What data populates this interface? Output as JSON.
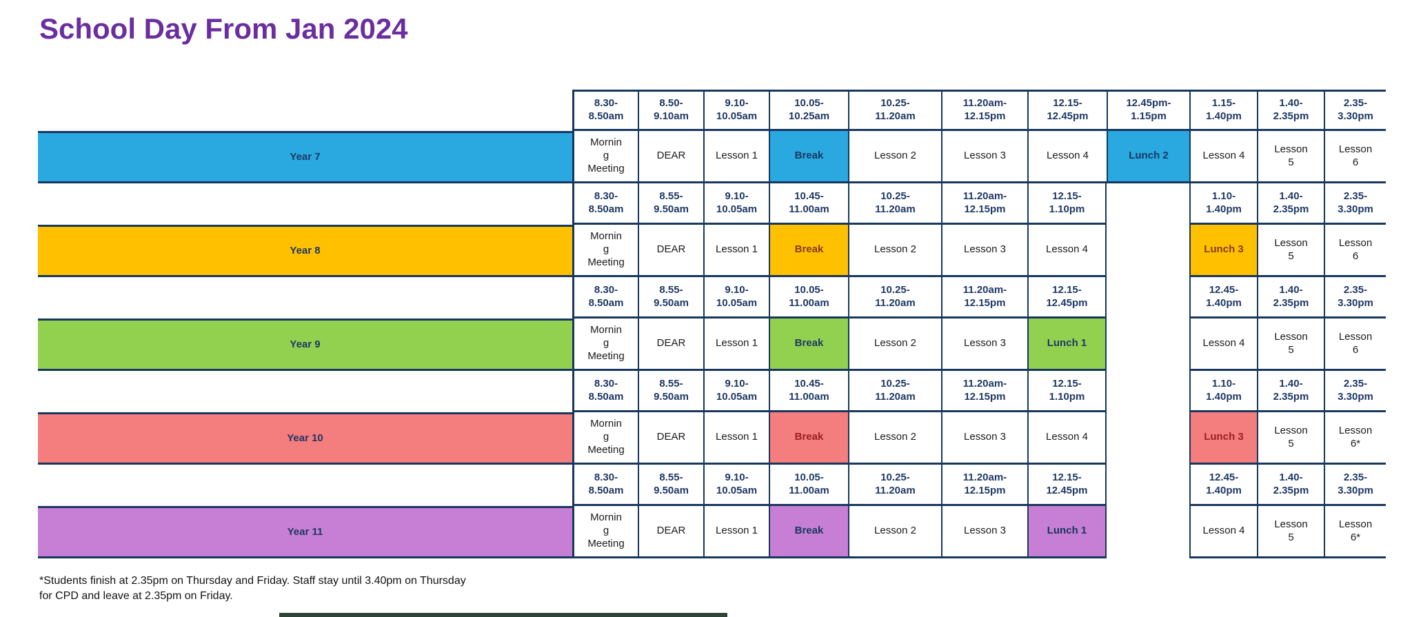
{
  "title": "School Day From Jan 2024",
  "footnote": "*Students finish at 2.35pm on Thursday and Friday. Staff stay until 3.40pm on Thursday\nfor CPD and leave at 2.35pm on Friday.",
  "colors": {
    "title_text": "#6B2E9E",
    "grid_border": "#17375E",
    "time_text": "#1F3864",
    "cell_text": "#1A1A1A",
    "bottom_bar": "#2D4436"
  },
  "timetable": {
    "years": [
      {
        "label": "Year 7",
        "color": "#29A9E0",
        "highlight_text_color": "#17375E",
        "times": [
          "8.30-\n8.50am",
          "8.50-\n9.10am",
          "9.10-\n10.05am",
          "10.05-\n10.25am",
          "10.25-\n11.20am",
          "11.20am-\n12.15pm",
          "12.15-\n12.45pm",
          "12.45pm-\n1.15pm",
          "1.15-\n1.40pm",
          "1.40-\n2.35pm",
          "2.35-\n3.30pm"
        ],
        "periods": [
          {
            "text": "Mornin\ng\nMeeting"
          },
          {
            "text": "DEAR"
          },
          {
            "text": "Lesson 1"
          },
          {
            "text": "Break",
            "highlight": true
          },
          {
            "text": "Lesson 2"
          },
          {
            "text": "Lesson 3"
          },
          {
            "text": "Lesson 4"
          },
          {
            "text": "Lunch 2",
            "highlight": true
          },
          {
            "text": "Lesson 4"
          },
          {
            "text": "Lesson\n5"
          },
          {
            "text": "Lesson\n6"
          }
        ]
      },
      {
        "label": "Year 8",
        "color": "#FFC000",
        "highlight_text_color": "#843C0C",
        "times": [
          "8.30-\n8.50am",
          "8.55-\n9.50am",
          "9.10-\n10.05am",
          "10.45-\n11.00am",
          "10.25-\n11.20am",
          "11.20am-\n12.15pm",
          "12.15-\n1.10pm",
          "",
          "1.10-\n1.40pm",
          "1.40-\n2.35pm",
          "2.35-\n3.30pm"
        ],
        "periods": [
          {
            "text": "Mornin\ng\nMeeting"
          },
          {
            "text": "DEAR"
          },
          {
            "text": "Lesson 1"
          },
          {
            "text": "Break",
            "highlight": true
          },
          {
            "text": "Lesson 2"
          },
          {
            "text": "Lesson 3"
          },
          {
            "text": "Lesson 4"
          },
          {
            "text": "",
            "gap": true
          },
          {
            "text": "Lunch 3",
            "highlight": true
          },
          {
            "text": "Lesson\n5"
          },
          {
            "text": "Lesson\n6"
          }
        ]
      },
      {
        "label": "Year 9",
        "color": "#92D050",
        "highlight_text_color": "#1F3864",
        "times": [
          "8.30-\n8.50am",
          "8.55-\n9.50am",
          "9.10-\n10.05am",
          "10.05-\n11.00am",
          "10.25-\n11.20am",
          "11.20am-\n12.15pm",
          "12.15-\n12.45pm",
          "",
          "12.45-\n1.40pm",
          "1.40-\n2.35pm",
          "2.35-\n3.30pm"
        ],
        "periods": [
          {
            "text": "Mornin\ng\nMeeting"
          },
          {
            "text": "DEAR"
          },
          {
            "text": "Lesson 1"
          },
          {
            "text": "Break",
            "highlight": true
          },
          {
            "text": "Lesson 2"
          },
          {
            "text": "Lesson 3"
          },
          {
            "text": "Lunch 1",
            "highlight": true
          },
          {
            "text": "",
            "gap": true
          },
          {
            "text": "Lesson 4"
          },
          {
            "text": "Lesson\n5"
          },
          {
            "text": "Lesson\n6"
          }
        ]
      },
      {
        "label": "Year 10",
        "color": "#F47D7D",
        "highlight_text_color": "#9C2020",
        "times": [
          "8.30-\n8.50am",
          "8.55-\n9.50am",
          "9.10-\n10.05am",
          "10.45-\n11.00am",
          "10.25-\n11.20am",
          "11.20am-\n12.15pm",
          "12.15-\n1.10pm",
          "",
          "1.10-\n1.40pm",
          "1.40-\n2.35pm",
          "2.35-\n3.30pm"
        ],
        "periods": [
          {
            "text": "Mornin\ng\nMeeting"
          },
          {
            "text": "DEAR"
          },
          {
            "text": "Lesson 1"
          },
          {
            "text": "Break",
            "highlight": true
          },
          {
            "text": "Lesson 2"
          },
          {
            "text": "Lesson 3"
          },
          {
            "text": "Lesson 4"
          },
          {
            "text": "",
            "gap": true
          },
          {
            "text": "Lunch 3",
            "highlight": true
          },
          {
            "text": "Lesson\n5"
          },
          {
            "text": "Lesson\n6*"
          }
        ]
      },
      {
        "label": "Year 11",
        "color": "#C67FD4",
        "highlight_text_color": "#17375E",
        "times": [
          "8.30-\n8.50am",
          "8.55-\n9.50am",
          "9.10-\n10.05am",
          "10.05-\n11.00am",
          "10.25-\n11.20am",
          "11.20am-\n12.15pm",
          "12.15-\n12.45pm",
          "",
          "12.45-\n1.40pm",
          "1.40-\n2.35pm",
          "2.35-\n3.30pm"
        ],
        "periods": [
          {
            "text": "Mornin\ng\nMeeting"
          },
          {
            "text": "DEAR"
          },
          {
            "text": "Lesson 1"
          },
          {
            "text": "Break",
            "highlight": true
          },
          {
            "text": "Lesson 2"
          },
          {
            "text": "Lesson 3"
          },
          {
            "text": "Lunch 1",
            "highlight": true
          },
          {
            "text": "",
            "gap": true
          },
          {
            "text": "Lesson 4"
          },
          {
            "text": "Lesson\n5"
          },
          {
            "text": "Lesson\n6*"
          }
        ]
      }
    ]
  }
}
